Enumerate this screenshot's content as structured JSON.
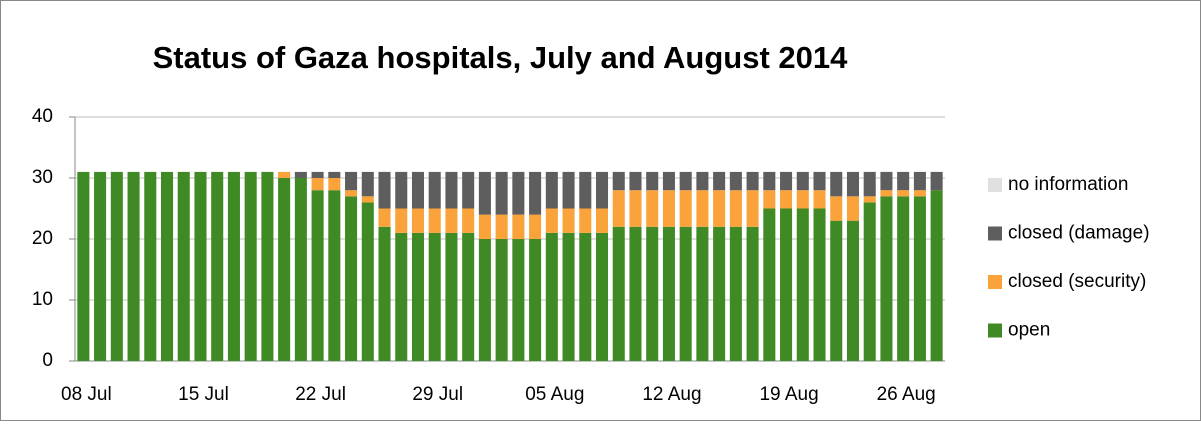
{
  "chart_data": {
    "type": "stacked_bar",
    "title": "Status of Gaza hospitals, July and August 2014",
    "categories": [
      "08 Jul",
      null,
      null,
      null,
      null,
      null,
      null,
      "15 Jul",
      null,
      null,
      null,
      null,
      null,
      null,
      "22 Jul",
      null,
      null,
      null,
      null,
      null,
      null,
      "29 Jul",
      null,
      null,
      null,
      null,
      null,
      null,
      "05 Aug",
      null,
      null,
      null,
      null,
      null,
      null,
      "12 Aug",
      null,
      null,
      null,
      null,
      null,
      null,
      "19 Aug",
      null,
      null,
      null,
      null,
      null,
      null,
      "26 Aug",
      null,
      null
    ],
    "series": [
      {
        "name": "open",
        "color": "#3f8a24",
        "values": [
          31,
          31,
          31,
          31,
          31,
          31,
          31,
          31,
          31,
          31,
          31,
          31,
          30,
          30,
          28,
          28,
          27,
          26,
          22,
          21,
          21,
          21,
          21,
          21,
          20,
          20,
          20,
          20,
          21,
          21,
          21,
          21,
          22,
          22,
          22,
          22,
          22,
          22,
          22,
          22,
          22,
          25,
          25,
          25,
          25,
          23,
          23,
          26,
          27,
          27,
          27,
          28
        ]
      },
      {
        "name": "closed (security)",
        "color": "#f9a33a",
        "values": [
          0,
          0,
          0,
          0,
          0,
          0,
          0,
          0,
          0,
          0,
          0,
          0,
          1,
          0,
          2,
          2,
          1,
          1,
          3,
          4,
          4,
          4,
          4,
          4,
          4,
          4,
          4,
          4,
          4,
          4,
          4,
          4,
          6,
          6,
          6,
          6,
          6,
          6,
          6,
          6,
          6,
          3,
          3,
          3,
          3,
          4,
          4,
          1,
          1,
          1,
          1,
          0
        ]
      },
      {
        "name": "closed (damage)",
        "color": "#5e5e5e",
        "values": [
          0,
          0,
          0,
          0,
          0,
          0,
          0,
          0,
          0,
          0,
          0,
          0,
          0,
          1,
          1,
          1,
          3,
          4,
          6,
          6,
          6,
          6,
          6,
          6,
          7,
          7,
          7,
          7,
          6,
          6,
          6,
          6,
          3,
          3,
          3,
          3,
          3,
          3,
          3,
          3,
          3,
          3,
          3,
          3,
          3,
          4,
          4,
          4,
          3,
          3,
          3,
          3
        ]
      },
      {
        "name": "no information",
        "color": "#e0e0e0",
        "values": [
          0,
          0,
          0,
          0,
          0,
          0,
          0,
          0,
          0,
          0,
          0,
          0,
          0,
          0,
          0,
          0,
          0,
          0,
          0,
          0,
          0,
          0,
          0,
          0,
          0,
          0,
          0,
          0,
          0,
          0,
          0,
          0,
          0,
          0,
          0,
          0,
          0,
          0,
          0,
          0,
          0,
          0,
          0,
          0,
          0,
          0,
          0,
          0,
          0,
          0,
          0,
          0
        ]
      }
    ],
    "ylim": [
      0,
      40
    ],
    "yticks": [
      0,
      10,
      20,
      30,
      40
    ],
    "grid": true
  }
}
